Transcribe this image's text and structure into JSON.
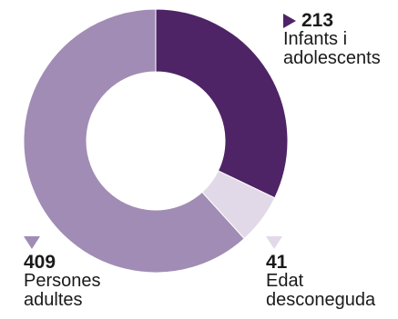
{
  "chart_data": {
    "type": "pie",
    "donut": true,
    "slices": [
      {
        "label_lines": [
          "Infants i",
          "adolescents"
        ],
        "value": 213,
        "value_text": "213",
        "color": "#4e2466"
      },
      {
        "label_lines": [
          "Edat",
          "desconeguda"
        ],
        "value": 41,
        "value_text": "41",
        "color": "#e2d9e8"
      },
      {
        "label_lines": [
          "Persones",
          "adultes"
        ],
        "value": 409,
        "value_text": "409",
        "color": "#a08cb4"
      }
    ]
  }
}
